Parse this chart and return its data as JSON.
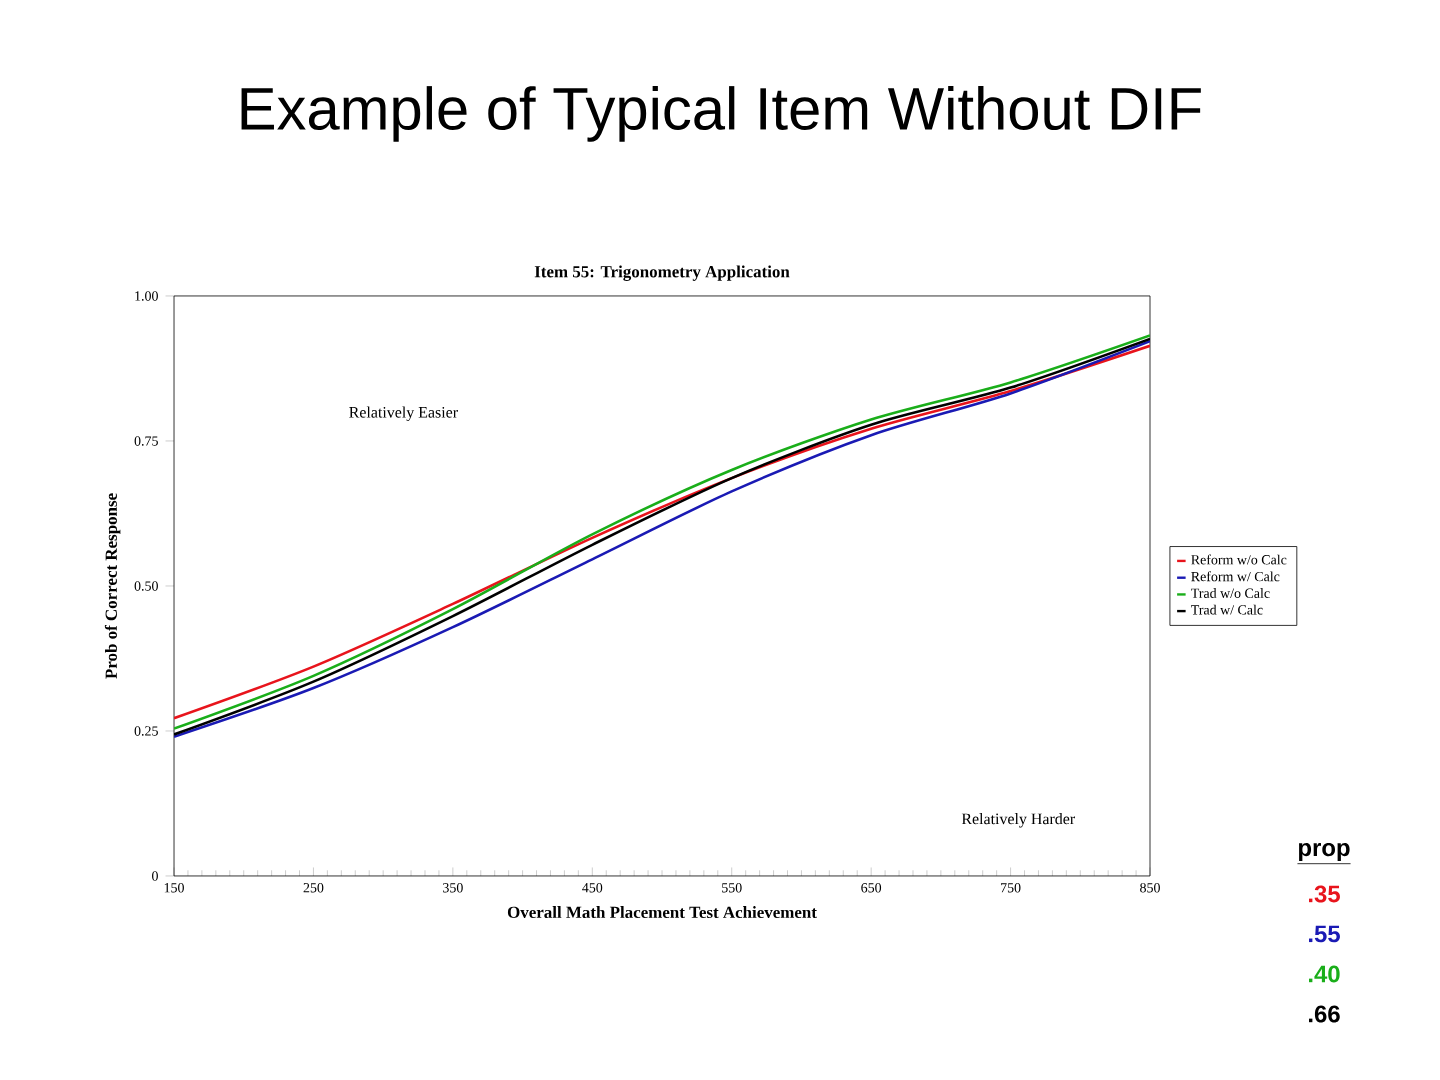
{
  "chart_data": {
    "type": "line",
    "title": "Example of Typical Item Without DIF",
    "subtitle": "Item 55: Trigonometry Application",
    "xlabel": "Overall Math Placement Test Achievement",
    "ylabel": "Prob of Correct Response",
    "x": [
      150,
      250,
      350,
      450,
      550,
      650,
      750,
      850
    ],
    "series": [
      {
        "name": "Reform w/o Calc",
        "color": "#e8141c",
        "values": [
          0.272,
          0.361,
          0.469,
          0.583,
          0.686,
          0.771,
          0.836,
          0.914
        ]
      },
      {
        "name": "Reform w/ Calc",
        "color": "#1a1ab4",
        "values": [
          0.24,
          0.324,
          0.429,
          0.546,
          0.663,
          0.76,
          0.832,
          0.922
        ]
      },
      {
        "name": "Trad w/o Calc",
        "color": "#1aae1a",
        "values": [
          0.254,
          0.345,
          0.46,
          0.589,
          0.7,
          0.787,
          0.851,
          0.932
        ]
      },
      {
        "name": "Trad w/ Calc",
        "color": "#000000",
        "values": [
          0.244,
          0.335,
          0.448,
          0.571,
          0.686,
          0.778,
          0.842,
          0.926
        ]
      }
    ],
    "xlim": [
      150,
      850
    ],
    "xticks": [
      150,
      250,
      350,
      450,
      550,
      650,
      750,
      850
    ],
    "ylim": [
      0,
      1
    ],
    "yticks": [
      0,
      {
        "value": 0.25,
        "label": "0.25"
      },
      {
        "value": 0.5,
        "label": "0.50"
      },
      {
        "value": 0.75,
        "label": "0.75"
      },
      {
        "value": 1,
        "label": "1.00"
      }
    ],
    "grid": false,
    "legend": "right",
    "marker": "none",
    "line_style": "solid",
    "annotations": [
      "Relatively Easier",
      "Relatively Harder",
      "prop",
      ".35",
      ".55",
      ".40",
      ".66"
    ]
  }
}
